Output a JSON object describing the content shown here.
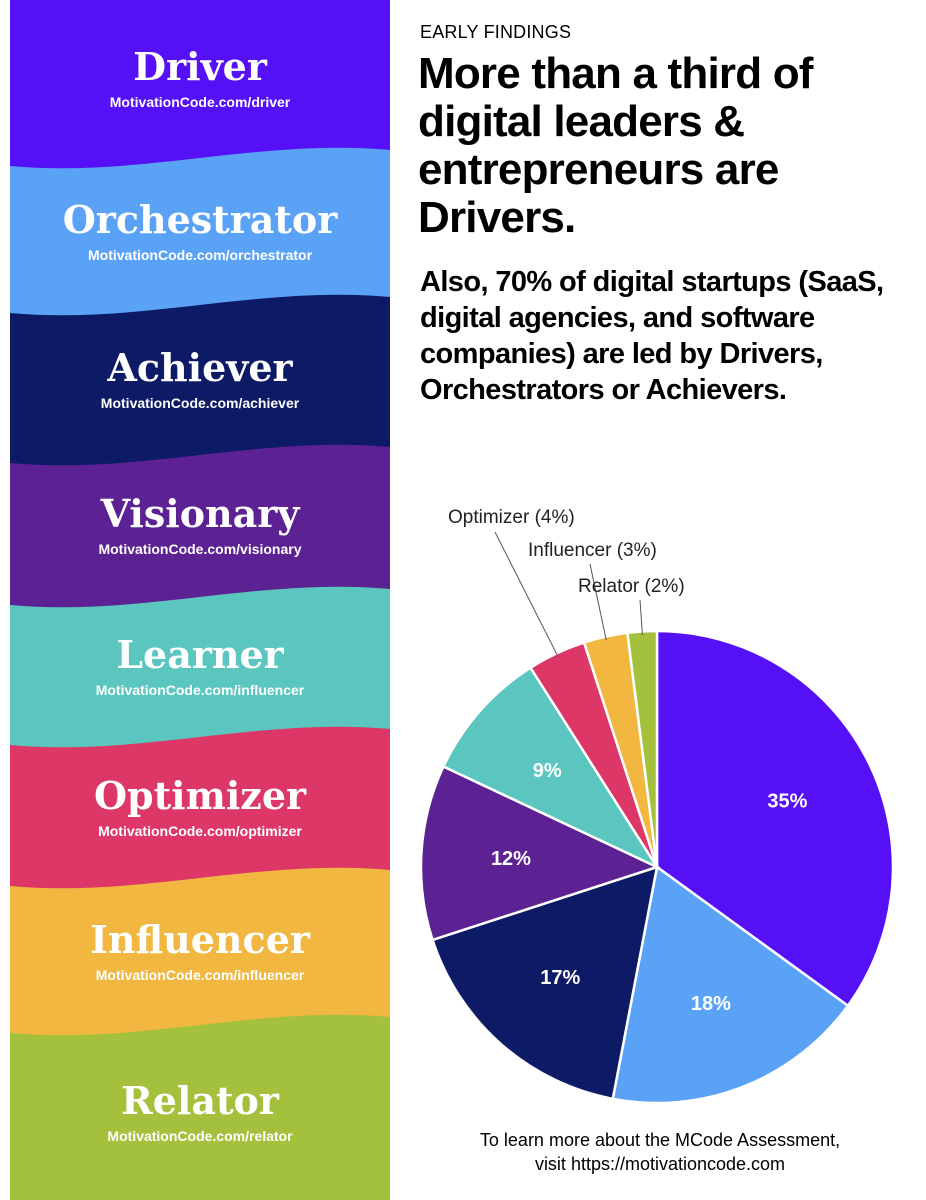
{
  "bands": [
    {
      "name": "Driver",
      "url": "MotivationCode.com/driver",
      "color": "#5510f5"
    },
    {
      "name": "Orchestrator",
      "url": "MotivationCode.com/orchestrator",
      "color": "#5aa2f6"
    },
    {
      "name": "Achiever",
      "url": "MotivationCode.com/achiever",
      "color": "#0d1a66"
    },
    {
      "name": "Visionary",
      "url": "MotivationCode.com/visionary",
      "color": "#5c2293"
    },
    {
      "name": "Learner",
      "url": "MotivationCode.com/influencer",
      "color": "#5ac6bf"
    },
    {
      "name": "Optimizer",
      "url": "MotivationCode.com/optimizer",
      "color": "#dc3767"
    },
    {
      "name": "Influencer",
      "url": "MotivationCode.com/influencer",
      "color": "#f2b740"
    },
    {
      "name": "Relator",
      "url": "MotivationCode.com/relator",
      "color": "#a4c13e"
    }
  ],
  "kicker": "EARLY FINDINGS",
  "headline": "More than a third of digital leaders & entrepreneurs are Drivers.",
  "subhead": "Also, 70% of digital startups (SaaS, digital agencies, and software companies) are led by Drivers, Orchestrators or Achievers.",
  "footer": {
    "line1": "To learn more about the MCode Assessment,",
    "line2": "visit https://motivationcode.com"
  },
  "chart_data": {
    "type": "pie",
    "title": "",
    "start_angle_deg": 0,
    "direction": "clockwise",
    "slices": [
      {
        "label": "Driver",
        "value": 35,
        "display": "35%",
        "color": "#5510f5",
        "label_inside": true
      },
      {
        "label": "Orchestrator",
        "value": 18,
        "display": "18%",
        "color": "#5aa2f6",
        "label_inside": true
      },
      {
        "label": "Achiever",
        "value": 17,
        "display": "17%",
        "color": "#0d1a66",
        "label_inside": true
      },
      {
        "label": "Visionary",
        "value": 12,
        "display": "12%",
        "color": "#5c2293",
        "label_inside": true
      },
      {
        "label": "Learner",
        "value": 9,
        "display": "9%",
        "color": "#5ac6bf",
        "label_inside": true
      },
      {
        "label": "Optimizer",
        "value": 4,
        "display": "Optimizer (4%)",
        "color": "#dc3767",
        "label_inside": false
      },
      {
        "label": "Influencer",
        "value": 3,
        "display": "Influencer (3%)",
        "color": "#f2b740",
        "label_inside": false
      },
      {
        "label": "Relator",
        "value": 2,
        "display": "Relator (2%)",
        "color": "#a4c13e",
        "label_inside": false
      }
    ]
  }
}
